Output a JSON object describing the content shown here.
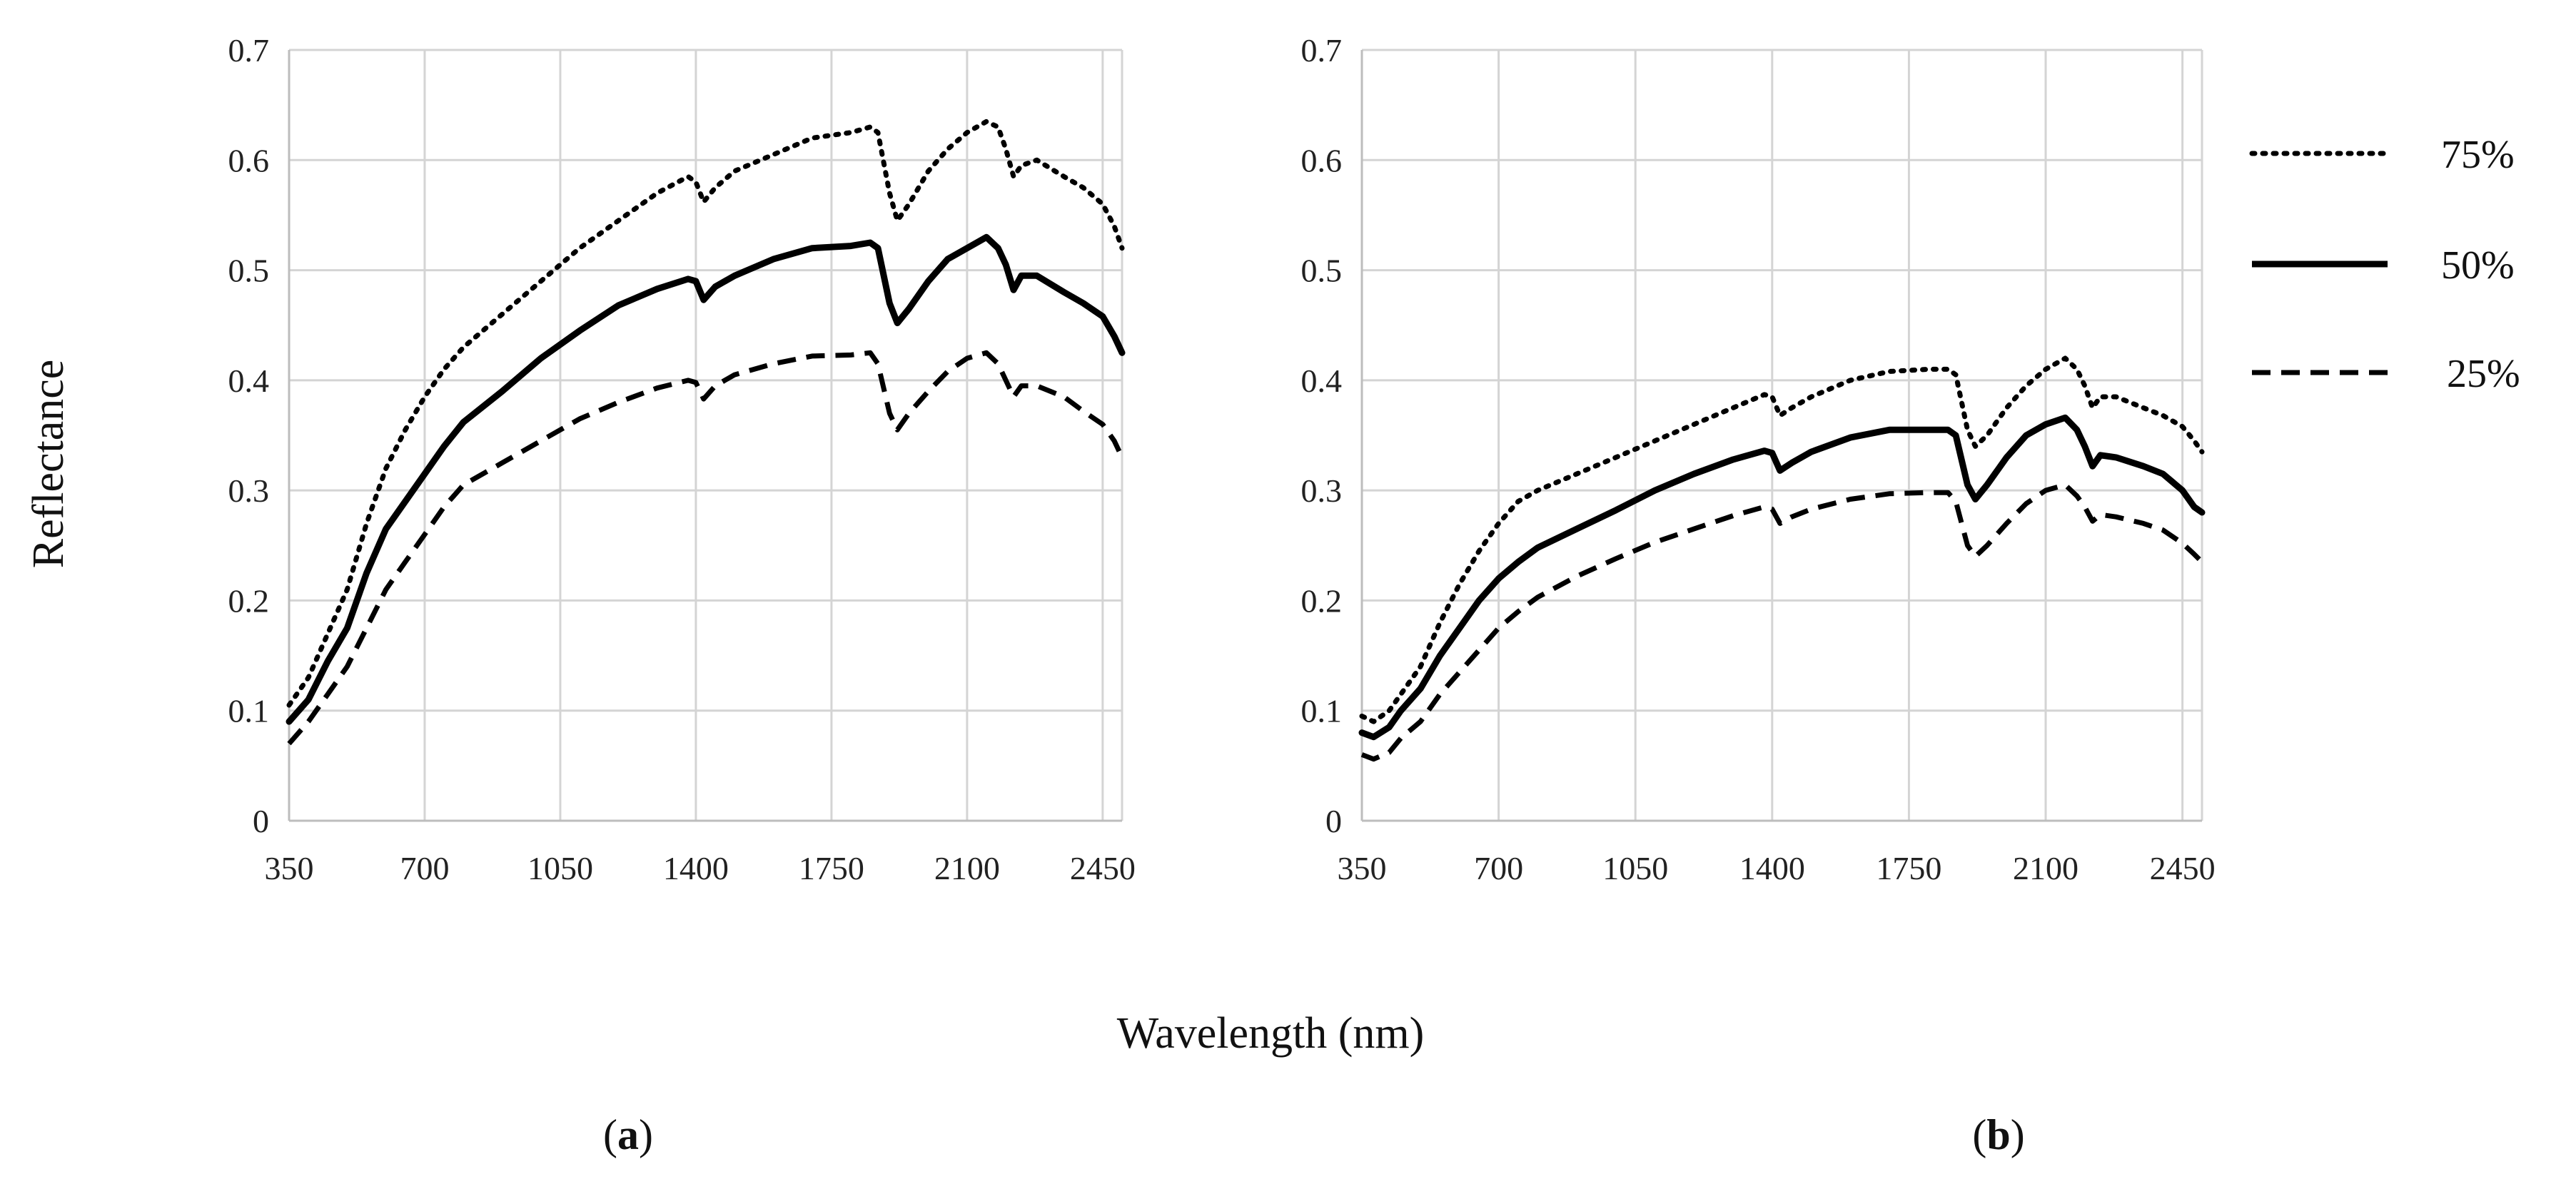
{
  "figure": {
    "ylabel": "Reflectance",
    "xlabel": "Wavelength (nm)"
  },
  "legend": [
    {
      "name": "75%",
      "style": "dotted"
    },
    {
      "name": "50%",
      "style": "solid"
    },
    {
      "name": "25%",
      "style": "dashed"
    }
  ],
  "chart_data": [
    {
      "type": "line",
      "panel_open": "(",
      "panel_letter": "a",
      "panel_close": ")",
      "xlabel": "Wavelength (nm)",
      "ylabel": "Reflectance",
      "xlim": [
        350,
        2500
      ],
      "ylim": [
        0,
        0.7
      ],
      "xticks": [
        "350",
        "700",
        "1050",
        "1400",
        "1750",
        "2100",
        "2450"
      ],
      "yticks": [
        "0",
        "0.1",
        "0.2",
        "0.3",
        "0.4",
        "0.5",
        "0.6",
        "0.7"
      ],
      "grid": true,
      "series": [
        {
          "name": "75%",
          "style": "dotted",
          "points": [
            [
              350,
              0.105
            ],
            [
              400,
              0.13
            ],
            [
              450,
              0.17
            ],
            [
              500,
              0.21
            ],
            [
              550,
              0.27
            ],
            [
              600,
              0.32
            ],
            [
              650,
              0.355
            ],
            [
              700,
              0.385
            ],
            [
              750,
              0.41
            ],
            [
              800,
              0.43
            ],
            [
              900,
              0.46
            ],
            [
              1000,
              0.49
            ],
            [
              1100,
              0.52
            ],
            [
              1200,
              0.545
            ],
            [
              1300,
              0.57
            ],
            [
              1380,
              0.585
            ],
            [
              1400,
              0.58
            ],
            [
              1420,
              0.562
            ],
            [
              1450,
              0.575
            ],
            [
              1500,
              0.59
            ],
            [
              1600,
              0.605
            ],
            [
              1700,
              0.62
            ],
            [
              1800,
              0.625
            ],
            [
              1850,
              0.63
            ],
            [
              1870,
              0.625
            ],
            [
              1900,
              0.57
            ],
            [
              1920,
              0.545
            ],
            [
              1950,
              0.56
            ],
            [
              2000,
              0.59
            ],
            [
              2050,
              0.61
            ],
            [
              2100,
              0.625
            ],
            [
              2150,
              0.635
            ],
            [
              2180,
              0.63
            ],
            [
              2200,
              0.61
            ],
            [
              2220,
              0.585
            ],
            [
              2240,
              0.595
            ],
            [
              2280,
              0.6
            ],
            [
              2350,
              0.585
            ],
            [
              2400,
              0.575
            ],
            [
              2450,
              0.56
            ],
            [
              2480,
              0.54
            ],
            [
              2500,
              0.52
            ]
          ]
        },
        {
          "name": "50%",
          "style": "solid",
          "points": [
            [
              350,
              0.09
            ],
            [
              400,
              0.11
            ],
            [
              450,
              0.145
            ],
            [
              500,
              0.175
            ],
            [
              550,
              0.225
            ],
            [
              600,
              0.265
            ],
            [
              650,
              0.29
            ],
            [
              700,
              0.315
            ],
            [
              750,
              0.34
            ],
            [
              800,
              0.362
            ],
            [
              900,
              0.39
            ],
            [
              1000,
              0.42
            ],
            [
              1100,
              0.445
            ],
            [
              1200,
              0.468
            ],
            [
              1300,
              0.483
            ],
            [
              1380,
              0.492
            ],
            [
              1400,
              0.49
            ],
            [
              1420,
              0.473
            ],
            [
              1450,
              0.485
            ],
            [
              1500,
              0.495
            ],
            [
              1600,
              0.51
            ],
            [
              1700,
              0.52
            ],
            [
              1800,
              0.522
            ],
            [
              1850,
              0.525
            ],
            [
              1870,
              0.52
            ],
            [
              1900,
              0.47
            ],
            [
              1920,
              0.452
            ],
            [
              1950,
              0.465
            ],
            [
              2000,
              0.49
            ],
            [
              2050,
              0.51
            ],
            [
              2100,
              0.52
            ],
            [
              2150,
              0.53
            ],
            [
              2180,
              0.52
            ],
            [
              2200,
              0.505
            ],
            [
              2220,
              0.482
            ],
            [
              2240,
              0.495
            ],
            [
              2280,
              0.495
            ],
            [
              2350,
              0.48
            ],
            [
              2400,
              0.47
            ],
            [
              2450,
              0.458
            ],
            [
              2480,
              0.44
            ],
            [
              2500,
              0.425
            ]
          ]
        },
        {
          "name": "25%",
          "style": "dashed",
          "points": [
            [
              350,
              0.07
            ],
            [
              400,
              0.09
            ],
            [
              450,
              0.115
            ],
            [
              500,
              0.14
            ],
            [
              550,
              0.175
            ],
            [
              600,
              0.21
            ],
            [
              650,
              0.235
            ],
            [
              700,
              0.26
            ],
            [
              750,
              0.285
            ],
            [
              800,
              0.305
            ],
            [
              900,
              0.325
            ],
            [
              1000,
              0.345
            ],
            [
              1100,
              0.365
            ],
            [
              1200,
              0.38
            ],
            [
              1300,
              0.393
            ],
            [
              1380,
              0.4
            ],
            [
              1400,
              0.398
            ],
            [
              1420,
              0.383
            ],
            [
              1450,
              0.395
            ],
            [
              1500,
              0.405
            ],
            [
              1600,
              0.415
            ],
            [
              1700,
              0.422
            ],
            [
              1800,
              0.423
            ],
            [
              1850,
              0.425
            ],
            [
              1870,
              0.415
            ],
            [
              1900,
              0.37
            ],
            [
              1920,
              0.355
            ],
            [
              1950,
              0.37
            ],
            [
              2000,
              0.39
            ],
            [
              2050,
              0.408
            ],
            [
              2100,
              0.42
            ],
            [
              2150,
              0.425
            ],
            [
              2180,
              0.415
            ],
            [
              2200,
              0.4
            ],
            [
              2220,
              0.385
            ],
            [
              2240,
              0.395
            ],
            [
              2280,
              0.395
            ],
            [
              2350,
              0.385
            ],
            [
              2400,
              0.372
            ],
            [
              2450,
              0.36
            ],
            [
              2480,
              0.345
            ],
            [
              2500,
              0.33
            ]
          ]
        }
      ]
    },
    {
      "type": "line",
      "panel_open": "(",
      "panel_letter": "b",
      "panel_close": ")",
      "xlabel": "Wavelength (nm)",
      "ylabel": "Reflectance",
      "xlim": [
        350,
        2500
      ],
      "ylim": [
        0,
        0.7
      ],
      "xticks": [
        "350",
        "700",
        "1050",
        "1400",
        "1750",
        "2100",
        "2450"
      ],
      "yticks": [
        "0",
        "0.1",
        "0.2",
        "0.3",
        "0.4",
        "0.5",
        "0.6",
        "0.7"
      ],
      "grid": true,
      "series": [
        {
          "name": "75%",
          "style": "dotted",
          "points": [
            [
              350,
              0.095
            ],
            [
              380,
              0.09
            ],
            [
              420,
              0.1
            ],
            [
              450,
              0.115
            ],
            [
              500,
              0.14
            ],
            [
              550,
              0.18
            ],
            [
              600,
              0.215
            ],
            [
              650,
              0.245
            ],
            [
              700,
              0.27
            ],
            [
              750,
              0.29
            ],
            [
              800,
              0.3
            ],
            [
              900,
              0.315
            ],
            [
              1000,
              0.33
            ],
            [
              1100,
              0.345
            ],
            [
              1200,
              0.36
            ],
            [
              1300,
              0.375
            ],
            [
              1380,
              0.387
            ],
            [
              1400,
              0.385
            ],
            [
              1420,
              0.368
            ],
            [
              1450,
              0.375
            ],
            [
              1500,
              0.385
            ],
            [
              1600,
              0.4
            ],
            [
              1700,
              0.408
            ],
            [
              1800,
              0.41
            ],
            [
              1850,
              0.41
            ],
            [
              1870,
              0.405
            ],
            [
              1900,
              0.355
            ],
            [
              1920,
              0.34
            ],
            [
              1950,
              0.35
            ],
            [
              2000,
              0.375
            ],
            [
              2050,
              0.395
            ],
            [
              2100,
              0.41
            ],
            [
              2150,
              0.42
            ],
            [
              2180,
              0.41
            ],
            [
              2200,
              0.395
            ],
            [
              2220,
              0.375
            ],
            [
              2240,
              0.385
            ],
            [
              2280,
              0.385
            ],
            [
              2350,
              0.375
            ],
            [
              2400,
              0.368
            ],
            [
              2450,
              0.358
            ],
            [
              2480,
              0.345
            ],
            [
              2500,
              0.335
            ]
          ]
        },
        {
          "name": "50%",
          "style": "solid",
          "points": [
            [
              350,
              0.08
            ],
            [
              380,
              0.076
            ],
            [
              420,
              0.085
            ],
            [
              450,
              0.1
            ],
            [
              500,
              0.12
            ],
            [
              550,
              0.15
            ],
            [
              600,
              0.175
            ],
            [
              650,
              0.2
            ],
            [
              700,
              0.22
            ],
            [
              750,
              0.235
            ],
            [
              800,
              0.248
            ],
            [
              900,
              0.265
            ],
            [
              1000,
              0.282
            ],
            [
              1100,
              0.3
            ],
            [
              1200,
              0.315
            ],
            [
              1300,
              0.328
            ],
            [
              1380,
              0.336
            ],
            [
              1400,
              0.334
            ],
            [
              1420,
              0.318
            ],
            [
              1450,
              0.325
            ],
            [
              1500,
              0.335
            ],
            [
              1600,
              0.348
            ],
            [
              1700,
              0.355
            ],
            [
              1800,
              0.355
            ],
            [
              1850,
              0.355
            ],
            [
              1870,
              0.35
            ],
            [
              1900,
              0.305
            ],
            [
              1920,
              0.292
            ],
            [
              1950,
              0.305
            ],
            [
              2000,
              0.33
            ],
            [
              2050,
              0.35
            ],
            [
              2100,
              0.36
            ],
            [
              2150,
              0.366
            ],
            [
              2180,
              0.355
            ],
            [
              2200,
              0.34
            ],
            [
              2220,
              0.322
            ],
            [
              2240,
              0.332
            ],
            [
              2280,
              0.33
            ],
            [
              2350,
              0.322
            ],
            [
              2400,
              0.315
            ],
            [
              2450,
              0.3
            ],
            [
              2480,
              0.285
            ],
            [
              2500,
              0.28
            ]
          ]
        },
        {
          "name": "25%",
          "style": "dashed",
          "points": [
            [
              350,
              0.06
            ],
            [
              380,
              0.056
            ],
            [
              420,
              0.062
            ],
            [
              450,
              0.075
            ],
            [
              500,
              0.09
            ],
            [
              550,
              0.115
            ],
            [
              600,
              0.135
            ],
            [
              650,
              0.155
            ],
            [
              700,
              0.175
            ],
            [
              750,
              0.19
            ],
            [
              800,
              0.203
            ],
            [
              900,
              0.222
            ],
            [
              1000,
              0.238
            ],
            [
              1100,
              0.253
            ],
            [
              1200,
              0.265
            ],
            [
              1300,
              0.277
            ],
            [
              1380,
              0.285
            ],
            [
              1400,
              0.283
            ],
            [
              1420,
              0.27
            ],
            [
              1450,
              0.276
            ],
            [
              1500,
              0.283
            ],
            [
              1600,
              0.292
            ],
            [
              1700,
              0.297
            ],
            [
              1800,
              0.298
            ],
            [
              1850,
              0.298
            ],
            [
              1870,
              0.29
            ],
            [
              1900,
              0.25
            ],
            [
              1920,
              0.24
            ],
            [
              1950,
              0.25
            ],
            [
              2000,
              0.27
            ],
            [
              2050,
              0.288
            ],
            [
              2100,
              0.3
            ],
            [
              2150,
              0.305
            ],
            [
              2180,
              0.295
            ],
            [
              2200,
              0.285
            ],
            [
              2220,
              0.272
            ],
            [
              2240,
              0.278
            ],
            [
              2280,
              0.276
            ],
            [
              2350,
              0.27
            ],
            [
              2400,
              0.264
            ],
            [
              2450,
              0.252
            ],
            [
              2480,
              0.242
            ],
            [
              2500,
              0.235
            ]
          ]
        }
      ]
    }
  ]
}
